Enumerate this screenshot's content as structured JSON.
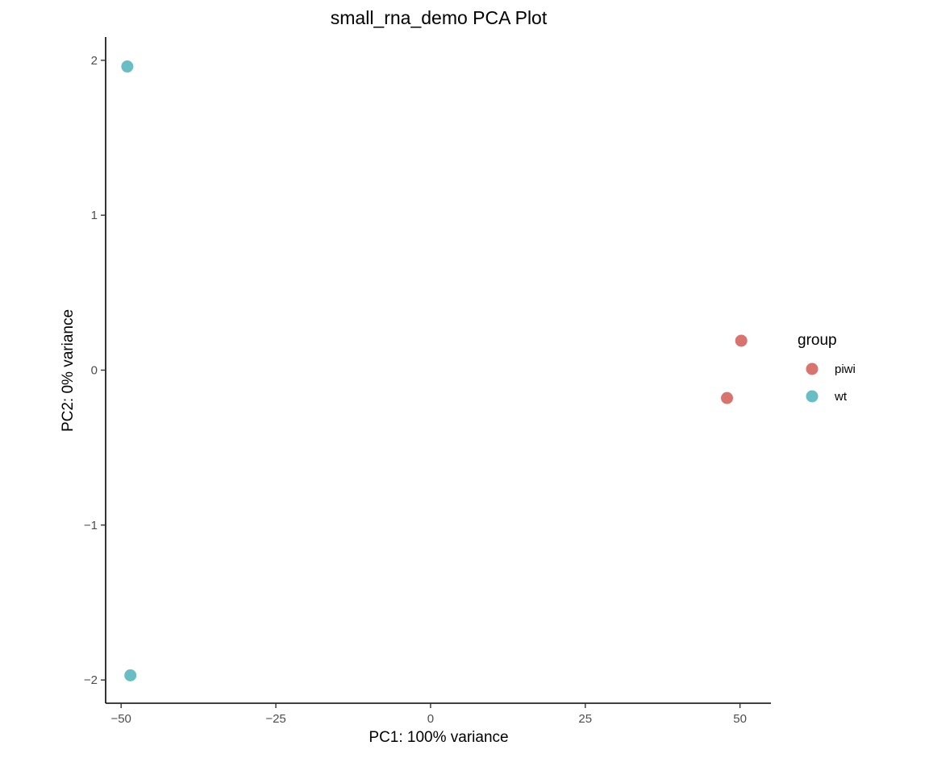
{
  "chart_data": {
    "type": "scatter",
    "title": "small_rna_demo PCA Plot",
    "xlabel": "PC1: 100% variance",
    "ylabel": "PC2: 0% variance",
    "xlim": [
      -52.5,
      55
    ],
    "ylim": [
      -2.15,
      2.15
    ],
    "x_ticks": [
      -50,
      -25,
      0,
      25,
      50
    ],
    "x_tick_labels": [
      "−50",
      "−25",
      "0",
      "25",
      "50"
    ],
    "y_ticks": [
      -2,
      -1,
      0,
      1,
      2
    ],
    "y_tick_labels": [
      "−2",
      "−1",
      "0",
      "1",
      "2"
    ],
    "grid": false,
    "legend": {
      "title": "group",
      "placement": "right"
    },
    "series": [
      {
        "name": "piwi",
        "color": "#D9736E",
        "points": [
          {
            "x": 50.2,
            "y": 0.19
          },
          {
            "x": 47.9,
            "y": -0.18
          }
        ]
      },
      {
        "name": "wt",
        "color": "#69BDC4",
        "points": [
          {
            "x": -49.0,
            "y": 1.96
          },
          {
            "x": -48.5,
            "y": -1.97
          }
        ]
      }
    ]
  }
}
